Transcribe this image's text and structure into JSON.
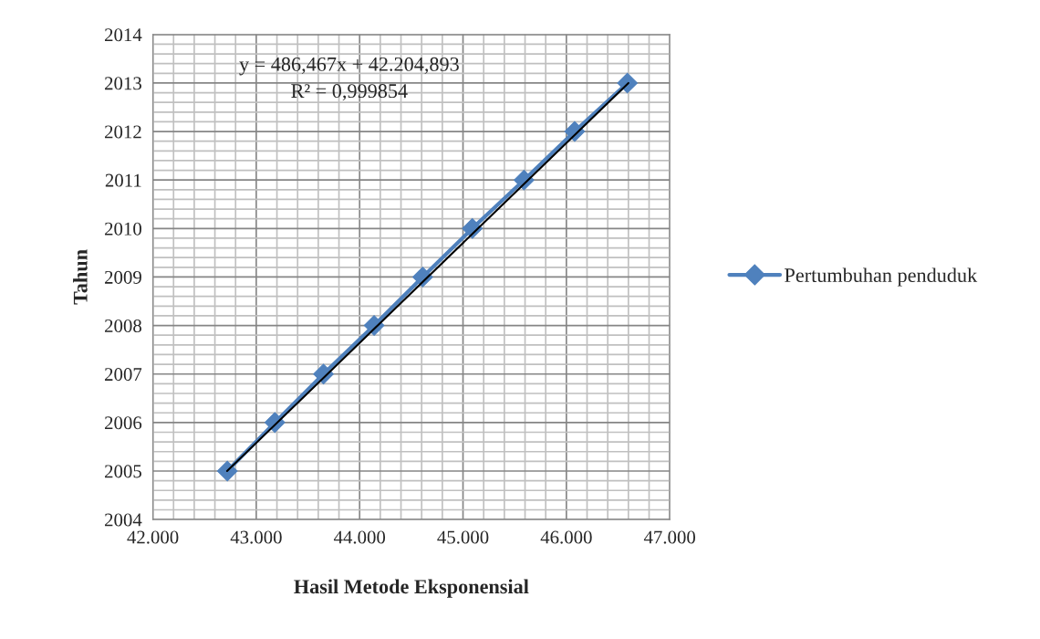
{
  "chart_data": {
    "type": "line",
    "xlabel": "Hasil Metode Eksponensial",
    "ylabel": "Tahun",
    "xlim": [
      42000,
      47000
    ],
    "xticks": [
      {
        "value": 42000,
        "label": "42.000"
      },
      {
        "value": 43000,
        "label": "43.000"
      },
      {
        "value": 44000,
        "label": "44.000"
      },
      {
        "value": 45000,
        "label": "45.000"
      },
      {
        "value": 46000,
        "label": "46.000"
      },
      {
        "value": 47000,
        "label": "47.000"
      }
    ],
    "ylim": [
      2004,
      2014
    ],
    "yticks": [
      2004,
      2005,
      2006,
      2007,
      2008,
      2009,
      2010,
      2011,
      2012,
      2013,
      2014
    ],
    "grid": true,
    "legend": "right",
    "annotations": [
      "y = 486,467x + 42.204,893",
      "R² = 0,999854"
    ],
    "series": [
      {
        "name": "Pertumbuhan penduduk",
        "color": "#4f81bd",
        "marker": "diamond",
        "x": [
          42720,
          43180,
          43650,
          44140,
          44610,
          45090,
          45590,
          46080,
          46590
        ],
        "values": [
          2005,
          2006,
          2007,
          2008,
          2009,
          2010,
          2011,
          2012,
          2013
        ]
      },
      {
        "color": "#000000",
        "marker": "none",
        "x": [
          42718,
          46600
        ],
        "values": [
          2005,
          2013
        ]
      }
    ]
  }
}
